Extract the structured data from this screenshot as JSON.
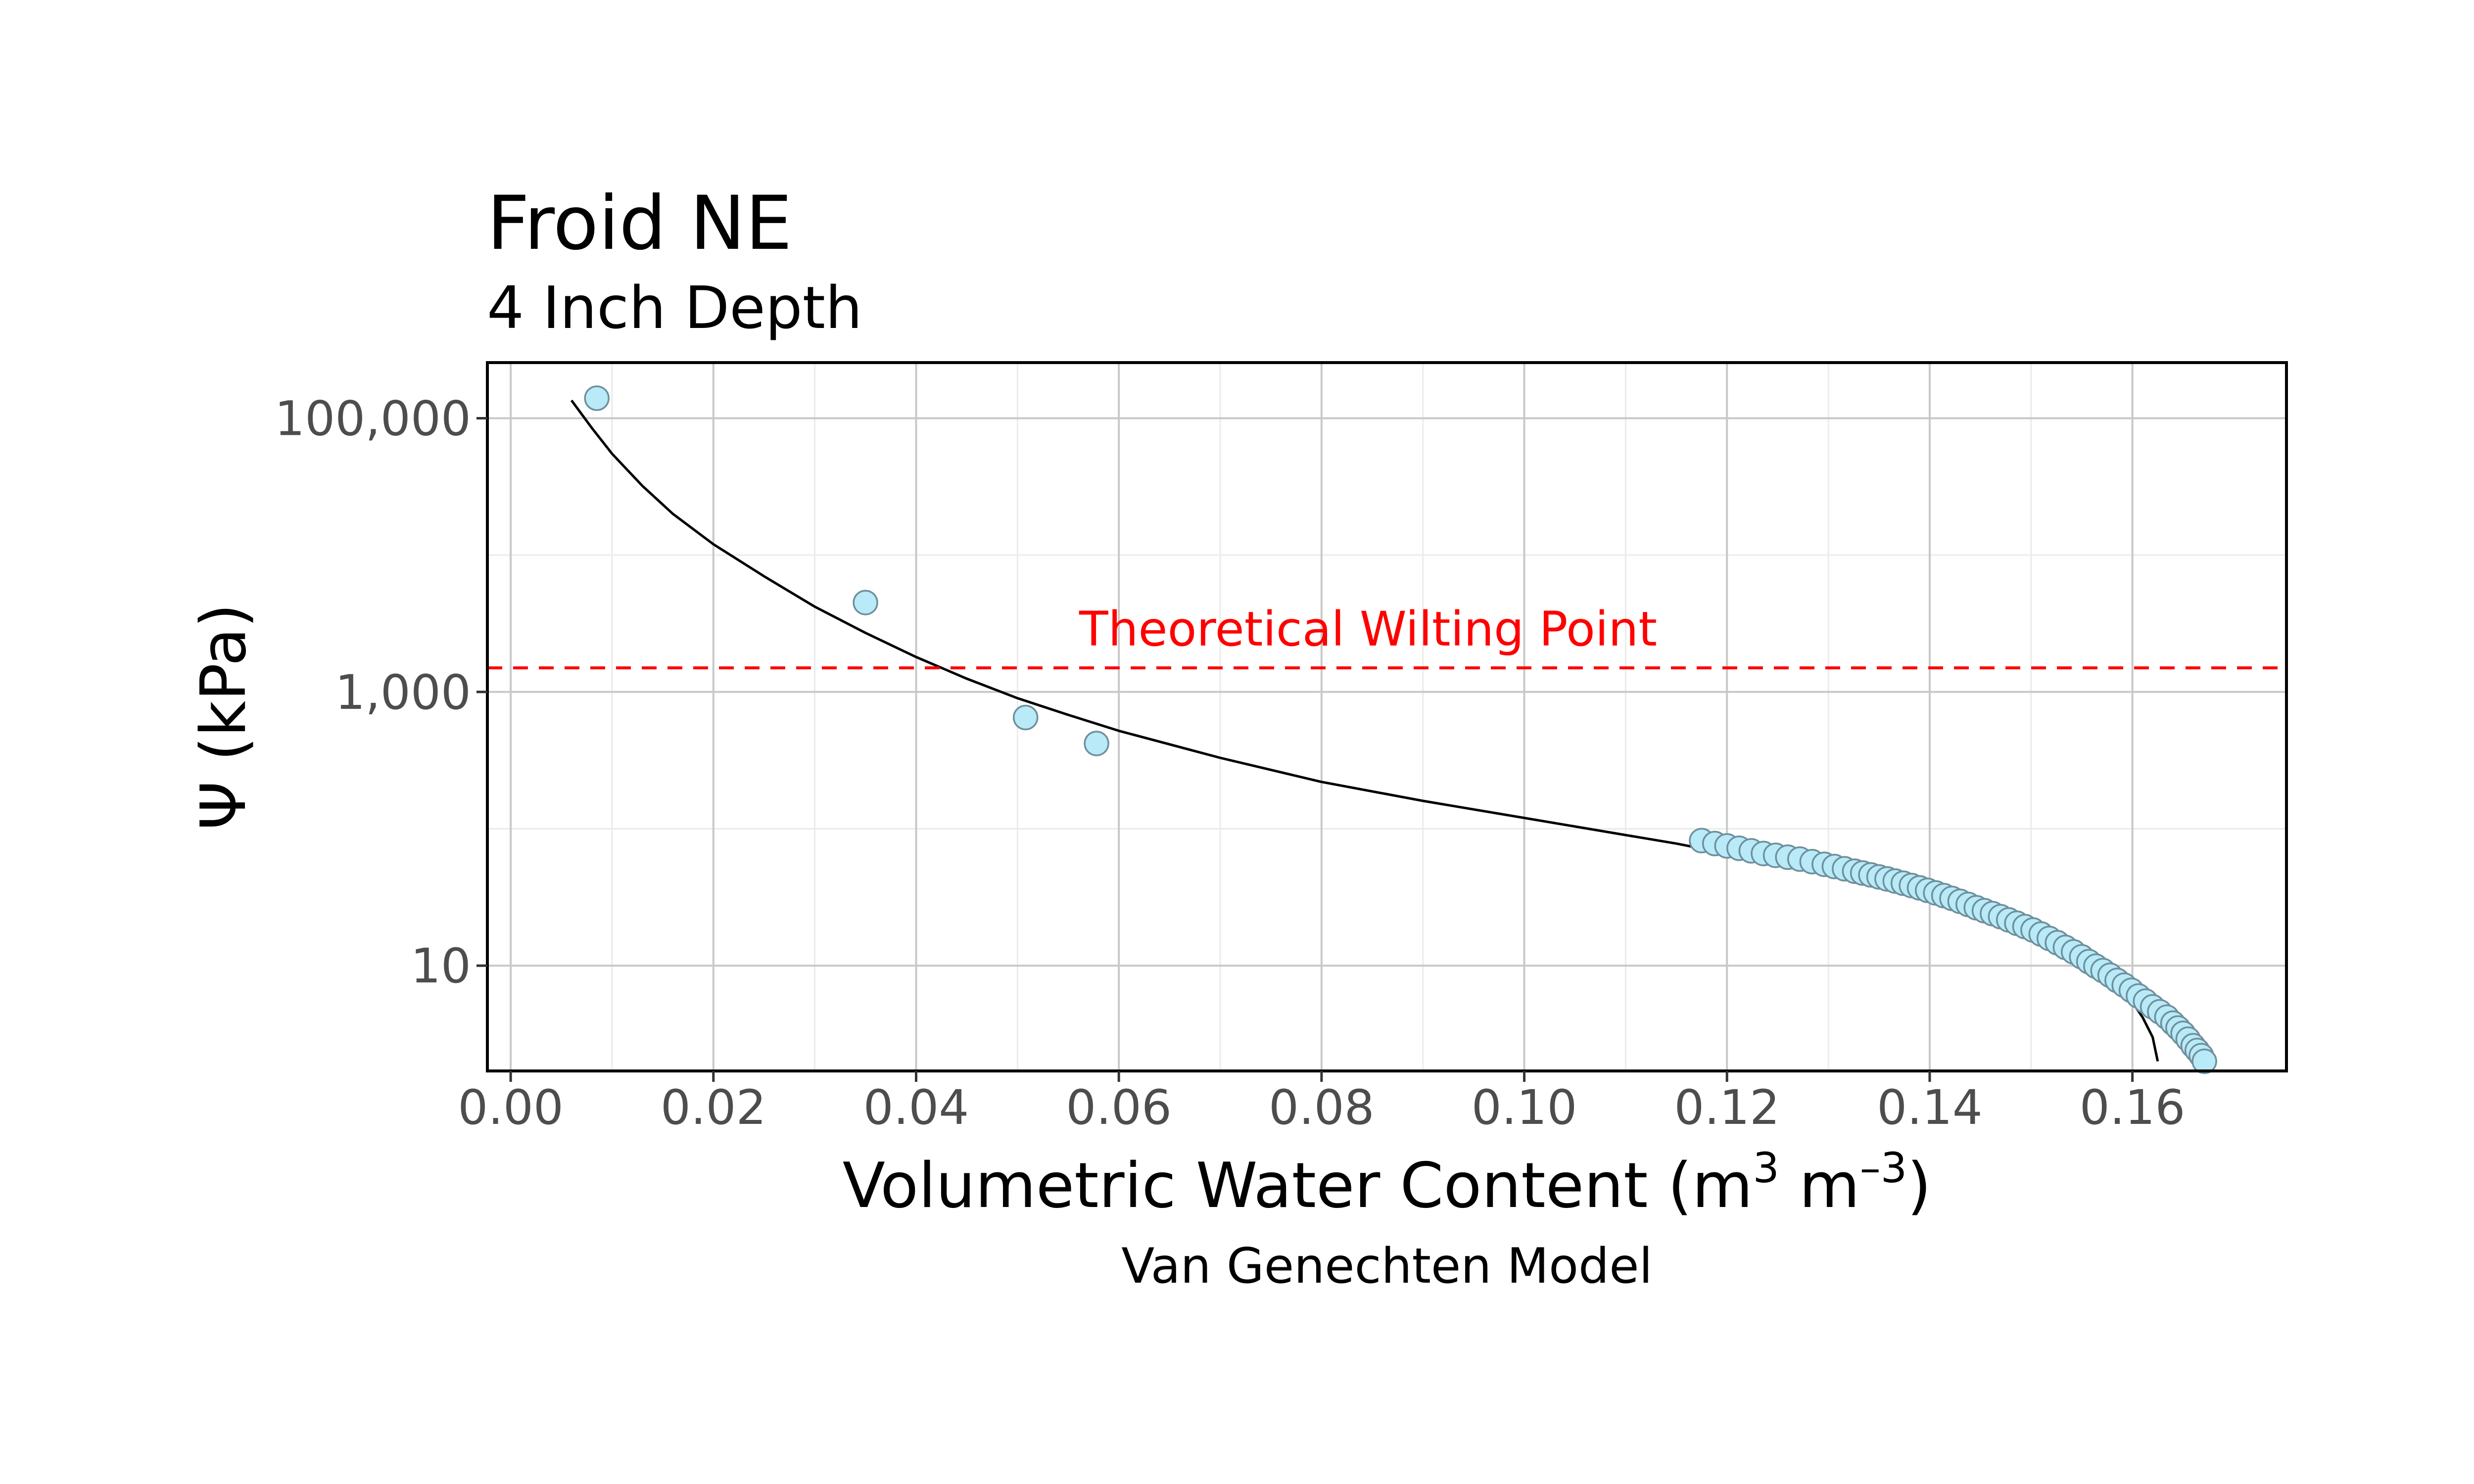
{
  "chart_data": {
    "type": "scatter",
    "title": "Froid NE",
    "subtitle": "4 Inch Depth",
    "xlabel": "Volumetric Water Content (m",
    "xlabel_sup1": "3",
    "xlabel_mid": " m",
    "xlabel_sup2": "–3",
    "xlabel_end": ")",
    "ylabel": "Ψ (kPa)",
    "caption": "Van Genechten Model",
    "y_scale": "log",
    "xlim": [
      -0.0023,
      0.1752
    ],
    "ylim": [
      1.7,
      255000
    ],
    "x_ticks": [
      {
        "value": 0.0,
        "label": "0.00"
      },
      {
        "value": 0.02,
        "label": "0.02"
      },
      {
        "value": 0.04,
        "label": "0.04"
      },
      {
        "value": 0.06,
        "label": "0.06"
      },
      {
        "value": 0.08,
        "label": "0.08"
      },
      {
        "value": 0.1,
        "label": "0.10"
      },
      {
        "value": 0.12,
        "label": "0.12"
      },
      {
        "value": 0.14,
        "label": "0.14"
      },
      {
        "value": 0.16,
        "label": "0.16"
      }
    ],
    "y_ticks": [
      {
        "value": 10,
        "label": "10"
      },
      {
        "value": 1000,
        "label": "1,000"
      },
      {
        "value": 100000,
        "label": "100,000"
      }
    ],
    "y_minor": [
      100,
      10000
    ],
    "grid": true,
    "point_color": "#b8eaf8",
    "point_edge": "#6f8f9c",
    "curve_color": "#000000",
    "reference_line": {
      "y": 1500,
      "label": "Theoretical Wilting Point",
      "color": "#ff0000",
      "style": "dashed"
    },
    "series": [
      {
        "kind": "points",
        "x": [
          0.0085,
          0.035,
          0.0508,
          0.0578,
          0.1175,
          0.1188,
          0.12,
          0.1212,
          0.1224,
          0.1236,
          0.1248,
          0.126,
          0.1272,
          0.1284,
          0.1296,
          0.1306,
          0.1316,
          0.1326,
          0.1334,
          0.1342,
          0.135,
          0.1358,
          0.1366,
          0.1374,
          0.1382,
          0.139,
          0.1398,
          0.1406,
          0.1414,
          0.1422,
          0.143,
          0.1438,
          0.1446,
          0.1454,
          0.1462,
          0.147,
          0.1478,
          0.1486,
          0.1494,
          0.1502,
          0.151,
          0.1518,
          0.1526,
          0.1534,
          0.1542,
          0.155,
          0.1557,
          0.1564,
          0.1571,
          0.1578,
          0.1585,
          0.1592,
          0.1599,
          0.1606,
          0.1613,
          0.162,
          0.1627,
          0.1634,
          0.164,
          0.1645,
          0.165,
          0.1655,
          0.166,
          0.1664,
          0.1668,
          0.1671
        ],
        "y": [
          140000,
          4500,
          650,
          420,
          82,
          78,
          75,
          72,
          69,
          66,
          64,
          62,
          60,
          57.5,
          55,
          53,
          51,
          49,
          47.5,
          46,
          44.5,
          43,
          41.5,
          40,
          38.5,
          37,
          35.5,
          34,
          32.5,
          31,
          29.5,
          28,
          26.5,
          25.2,
          24,
          22.8,
          21.6,
          20.4,
          19.3,
          18.2,
          17,
          15.8,
          14.7,
          13.6,
          12.6,
          11.6,
          10.7,
          9.9,
          9.2,
          8.5,
          7.8,
          7.2,
          6.6,
          6.0,
          5.5,
          5.0,
          4.6,
          4.2,
          3.8,
          3.5,
          3.2,
          2.9,
          2.6,
          2.4,
          2.2,
          2.0
        ]
      },
      {
        "kind": "fitted-curve",
        "x": [
          0.006,
          0.008,
          0.01,
          0.013,
          0.016,
          0.02,
          0.025,
          0.03,
          0.035,
          0.04,
          0.045,
          0.05,
          0.055,
          0.06,
          0.07,
          0.08,
          0.09,
          0.1,
          0.11,
          0.115,
          0.12,
          0.125,
          0.13,
          0.135,
          0.14,
          0.145,
          0.15,
          0.153,
          0.156,
          0.158,
          0.16,
          0.161,
          0.162,
          0.1625
        ],
        "y": [
          135000,
          85000,
          55000,
          32000,
          20000,
          12000,
          7000,
          4200,
          2700,
          1800,
          1250,
          900,
          680,
          520,
          330,
          220,
          160,
          120,
          90,
          78,
          66,
          56,
          47,
          39,
          32,
          25,
          18,
          14,
          10,
          7.6,
          5.4,
          4.2,
          3.0,
          2.0
        ]
      }
    ]
  }
}
